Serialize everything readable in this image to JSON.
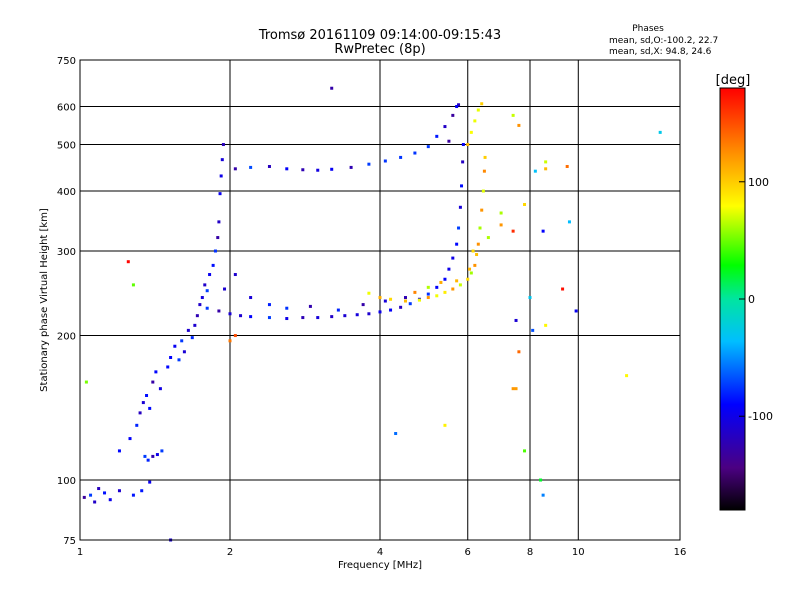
{
  "chart_data": {
    "type": "scatter",
    "title_line1": "Tromsø 20161109 09:14:00-09:15:43",
    "title_line2": "RwPretec (8p)",
    "info": {
      "heading": "Phases",
      "line1": "mean, sd,O:-100.2, 22.7",
      "line2": "mean, sd,X:  94.8, 24.6"
    },
    "xlabel": "Frequency [MHz]",
    "ylabel": "Stationary phase Virtual Height [km]",
    "x_scale": "log",
    "y_scale": "log",
    "xlim": [
      1,
      16
    ],
    "ylim": [
      75,
      750
    ],
    "x_ticks": [
      {
        "value": 1,
        "label": "1"
      },
      {
        "value": 2,
        "label": "2"
      },
      {
        "value": 4,
        "label": "4"
      },
      {
        "value": 6,
        "label": "6"
      },
      {
        "value": 8,
        "label": "8"
      },
      {
        "value": 10,
        "label": "10"
      },
      {
        "value": 16,
        "label": "16"
      }
    ],
    "y_ticks": [
      {
        "value": 75,
        "label": "75"
      },
      {
        "value": 100,
        "label": "100"
      },
      {
        "value": 200,
        "label": "200"
      },
      {
        "value": 300,
        "label": "300"
      },
      {
        "value": 400,
        "label": "400"
      },
      {
        "value": 500,
        "label": "500"
      },
      {
        "value": 600,
        "label": "600"
      },
      {
        "value": 750,
        "label": "750"
      }
    ],
    "grid": true,
    "colorbar": {
      "label": "[deg]",
      "range": [
        -180,
        180
      ],
      "ticks": [
        {
          "value": 100,
          "label": "100"
        },
        {
          "value": 0,
          "label": "0"
        },
        {
          "value": -100,
          "label": "-100"
        }
      ]
    },
    "series": [
      {
        "name": "O",
        "phase_mean": -100.2,
        "phase_sd": 22.7,
        "points": [
          [
            1.02,
            92
          ],
          [
            1.05,
            93
          ],
          [
            1.07,
            90
          ],
          [
            1.09,
            96
          ],
          [
            1.12,
            94
          ],
          [
            1.15,
            91
          ],
          [
            1.2,
            95
          ],
          [
            1.28,
            93
          ],
          [
            1.33,
            95
          ],
          [
            1.38,
            99
          ],
          [
            1.2,
            115
          ],
          [
            1.26,
            122
          ],
          [
            1.3,
            130
          ],
          [
            1.32,
            138
          ],
          [
            1.34,
            145
          ],
          [
            1.36,
            150
          ],
          [
            1.38,
            141
          ],
          [
            1.4,
            160
          ],
          [
            1.42,
            168
          ],
          [
            1.45,
            155
          ],
          [
            1.35,
            112
          ],
          [
            1.37,
            110
          ],
          [
            1.4,
            112
          ],
          [
            1.43,
            113
          ],
          [
            1.46,
            115
          ],
          [
            1.5,
            172
          ],
          [
            1.52,
            180
          ],
          [
            1.55,
            190
          ],
          [
            1.58,
            178
          ],
          [
            1.6,
            195
          ],
          [
            1.62,
            185
          ],
          [
            1.65,
            205
          ],
          [
            1.68,
            198
          ],
          [
            1.7,
            210
          ],
          [
            1.72,
            220
          ],
          [
            1.74,
            232
          ],
          [
            1.76,
            240
          ],
          [
            1.78,
            255
          ],
          [
            1.8,
            248
          ],
          [
            1.82,
            268
          ],
          [
            1.85,
            280
          ],
          [
            1.87,
            300
          ],
          [
            1.89,
            320
          ],
          [
            1.9,
            345
          ],
          [
            1.91,
            395
          ],
          [
            1.92,
            430
          ],
          [
            1.93,
            465
          ],
          [
            1.94,
            500
          ],
          [
            1.8,
            228
          ],
          [
            1.9,
            225
          ],
          [
            2.0,
            222
          ],
          [
            2.1,
            220
          ],
          [
            2.2,
            219
          ],
          [
            2.4,
            218
          ],
          [
            2.6,
            217
          ],
          [
            2.8,
            218
          ],
          [
            3.0,
            218
          ],
          [
            3.2,
            219
          ],
          [
            3.4,
            220
          ],
          [
            3.6,
            221
          ],
          [
            3.8,
            222
          ],
          [
            4.0,
            224
          ],
          [
            4.2,
            226
          ],
          [
            4.4,
            229
          ],
          [
            4.6,
            233
          ],
          [
            4.8,
            238
          ],
          [
            5.0,
            244
          ],
          [
            5.2,
            252
          ],
          [
            5.4,
            262
          ],
          [
            5.5,
            275
          ],
          [
            5.6,
            290
          ],
          [
            5.7,
            310
          ],
          [
            5.75,
            335
          ],
          [
            5.8,
            370
          ],
          [
            5.83,
            410
          ],
          [
            5.86,
            460
          ],
          [
            5.88,
            500
          ],
          [
            1.95,
            250
          ],
          [
            2.05,
            268
          ],
          [
            2.2,
            240
          ],
          [
            2.4,
            232
          ],
          [
            2.6,
            228
          ],
          [
            2.9,
            230
          ],
          [
            3.3,
            226
          ],
          [
            3.7,
            232
          ],
          [
            4.1,
            236
          ],
          [
            4.5,
            240
          ],
          [
            2.05,
            445
          ],
          [
            2.2,
            448
          ],
          [
            2.4,
            450
          ],
          [
            2.6,
            445
          ],
          [
            2.8,
            443
          ],
          [
            3.0,
            442
          ],
          [
            3.2,
            444
          ],
          [
            3.5,
            448
          ],
          [
            3.8,
            455
          ],
          [
            4.1,
            462
          ],
          [
            4.4,
            470
          ],
          [
            4.7,
            480
          ],
          [
            5.0,
            495
          ],
          [
            5.2,
            520
          ],
          [
            5.4,
            545
          ],
          [
            5.6,
            575
          ],
          [
            5.75,
            605
          ],
          [
            3.2,
            655
          ],
          [
            5.5,
            508
          ],
          [
            5.7,
            600
          ]
        ]
      },
      {
        "name": "X",
        "phase_mean": 94.8,
        "phase_sd": 24.6,
        "points": [
          [
            3.8,
            245
          ],
          [
            4.0,
            240
          ],
          [
            4.2,
            238
          ],
          [
            4.5,
            236
          ],
          [
            4.8,
            237
          ],
          [
            5.0,
            240
          ],
          [
            5.2,
            242
          ],
          [
            5.4,
            246
          ],
          [
            5.6,
            250
          ],
          [
            5.8,
            255
          ],
          [
            6.0,
            262
          ],
          [
            6.1,
            270
          ],
          [
            6.2,
            280
          ],
          [
            6.25,
            295
          ],
          [
            6.3,
            310
          ],
          [
            6.35,
            335
          ],
          [
            6.4,
            365
          ],
          [
            6.45,
            400
          ],
          [
            6.48,
            440
          ],
          [
            6.5,
            470
          ],
          [
            6.0,
            500
          ],
          [
            6.1,
            530
          ],
          [
            6.2,
            560
          ],
          [
            6.3,
            590
          ],
          [
            6.4,
            608
          ],
          [
            5.0,
            252
          ],
          [
            5.3,
            258
          ],
          [
            5.7,
            260
          ],
          [
            6.05,
            275
          ],
          [
            6.15,
            300
          ],
          [
            7.0,
            360
          ],
          [
            7.4,
            575
          ],
          [
            7.6,
            548
          ],
          [
            8.6,
            460
          ],
          [
            8.6,
            445
          ],
          [
            7.0,
            340
          ],
          [
            6.6,
            320
          ],
          [
            7.4,
            155
          ],
          [
            7.5,
            155
          ],
          [
            4.7,
            246
          ]
        ]
      }
    ],
    "other_points": [
      [
        7.4,
        330
      ],
      [
        7.8,
        375
      ],
      [
        8.0,
        240
      ],
      [
        8.5,
        330
      ],
      [
        8.6,
        210
      ],
      [
        9.5,
        450
      ],
      [
        9.6,
        345
      ],
      [
        9.9,
        225
      ],
      [
        8.2,
        440
      ],
      [
        7.6,
        185
      ],
      [
        8.4,
        100
      ],
      [
        8.5,
        93
      ],
      [
        7.8,
        115
      ],
      [
        5.4,
        130
      ],
      [
        4.3,
        125
      ],
      [
        12.5,
        165
      ],
      [
        14.6,
        530
      ],
      [
        7.5,
        215
      ],
      [
        8.1,
        205
      ],
      [
        9.3,
        250
      ],
      [
        1.25,
        285
      ],
      [
        1.28,
        255
      ],
      [
        2.0,
        195
      ],
      [
        2.05,
        200
      ],
      [
        1.52,
        75
      ],
      [
        1.03,
        160
      ]
    ]
  }
}
